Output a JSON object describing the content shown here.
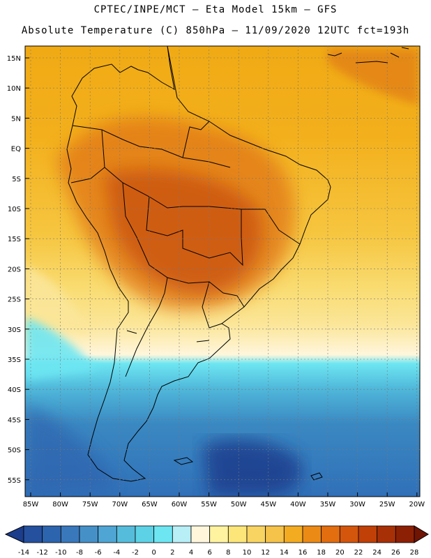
{
  "header": {
    "line1": "CPTEC/INPE/MCT —  Eta Model 15km — GFS",
    "line2": "Absolute Temperature (C) 850hPa — 11/09/2020 12UTC fct=193h"
  },
  "map": {
    "lat_labels": [
      "15N",
      "10N",
      "5N",
      "EQ",
      "5S",
      "10S",
      "15S",
      "20S",
      "25S",
      "30S",
      "35S",
      "40S",
      "45S",
      "50S",
      "55S"
    ],
    "lon_labels": [
      "85W",
      "80W",
      "75W",
      "70W",
      "65W",
      "60W",
      "55W",
      "50W",
      "45W",
      "40W",
      "35W",
      "30W",
      "25W",
      "20W"
    ]
  },
  "colorbar": {
    "labels": [
      "-14",
      "-12",
      "-10",
      "-8",
      "-6",
      "-4",
      "-2",
      "0",
      "2",
      "4",
      "6",
      "8",
      "10",
      "12",
      "14",
      "16",
      "18",
      "20",
      "22",
      "24",
      "26",
      "28"
    ],
    "colors": [
      "#1c3d8c",
      "#24509e",
      "#2d64ae",
      "#3a78bc",
      "#4690c8",
      "#4fa6d4",
      "#56bcdc",
      "#5dd2e6",
      "#6de6f2",
      "#b8eef6",
      "#fff6dc",
      "#fff3a0",
      "#fce67a",
      "#f8d462",
      "#f5c24a",
      "#f3ac22",
      "#ec8a16",
      "#e26e10",
      "#d4560c",
      "#c04008",
      "#a83006",
      "#8c2004",
      "#701404"
    ]
  }
}
